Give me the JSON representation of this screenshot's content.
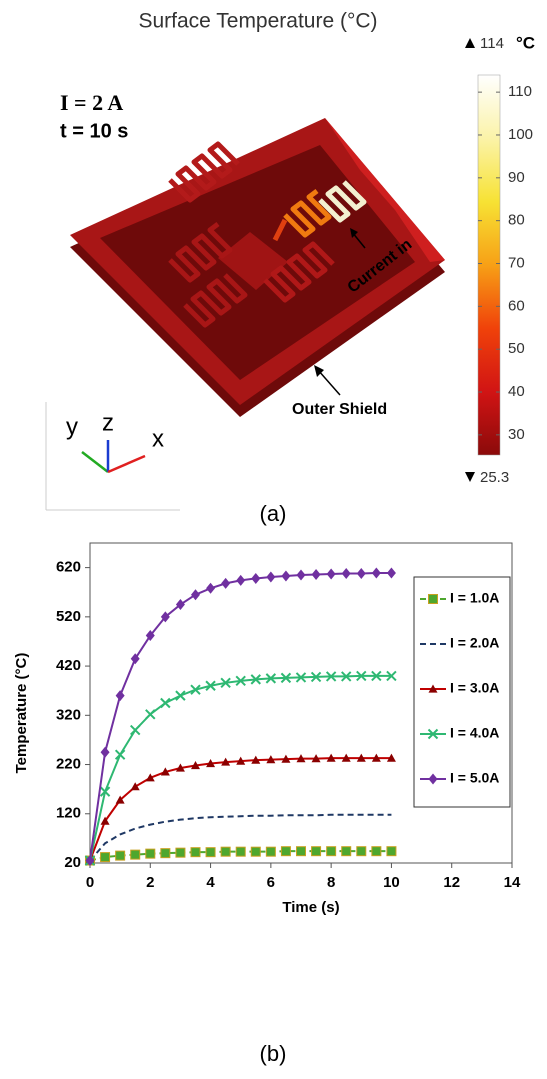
{
  "chart_data": [
    {
      "type": "colormap",
      "title": "Surface Temperature (°C)",
      "annotations": [
        "I = 2 A",
        "t = 10 s",
        "Current in",
        "Outer Shield"
      ],
      "axis_labels": [
        "y",
        "z",
        "x"
      ],
      "panel_label": "(a)",
      "colorbar": {
        "lim": [
          25.3,
          114
        ],
        "ticks": [
          30,
          40,
          50,
          60,
          70,
          80,
          90,
          100,
          110
        ],
        "unit": "°C",
        "colors": [
          "#8b0a0a",
          "#d11414",
          "#f0420a",
          "#f7a016",
          "#f7e234",
          "#fbf3a8",
          "#ffffff"
        ]
      }
    },
    {
      "type": "line",
      "panel_label": "(b)",
      "xlabel": "Time (s)",
      "ylabel": "Temperature (°C)",
      "x": [
        0,
        0.5,
        1,
        1.5,
        2,
        2.5,
        3,
        3.5,
        4,
        4.5,
        5,
        5.5,
        6,
        6.5,
        7,
        7.5,
        8,
        8.5,
        9,
        9.5,
        10
      ],
      "xlim": [
        0,
        14
      ],
      "xticks": [
        0,
        2,
        4,
        6,
        8,
        10,
        12,
        14
      ],
      "ylim": [
        20,
        670
      ],
      "yticks": [
        20,
        120,
        220,
        320,
        420,
        520,
        620
      ],
      "legend": "right",
      "series": [
        {
          "name": "I = 1.0A",
          "color": "#4ea72e",
          "marker": "square",
          "dash": true,
          "values": [
            25,
            32,
            35,
            37,
            39,
            40,
            41,
            42,
            42,
            43,
            43,
            43,
            43,
            44,
            44,
            44,
            44,
            44,
            44,
            44,
            44
          ]
        },
        {
          "name": "I = 2.0A",
          "color": "#1f3864",
          "marker": "none",
          "dash": true,
          "values": [
            25,
            60,
            78,
            90,
            98,
            104,
            108,
            111,
            113,
            114,
            115,
            116,
            116,
            117,
            117,
            117,
            118,
            118,
            118,
            118,
            118
          ]
        },
        {
          "name": "I = 3.0A",
          "color": "#c00000",
          "marker": "triangle",
          "dash": false,
          "values": [
            25,
            105,
            148,
            175,
            193,
            205,
            213,
            218,
            222,
            225,
            227,
            229,
            230,
            231,
            232,
            232,
            233,
            233,
            233,
            233,
            233
          ]
        },
        {
          "name": "I = 4.0A",
          "color": "#2eb872",
          "marker": "cross",
          "dash": false,
          "values": [
            25,
            165,
            240,
            290,
            322,
            345,
            360,
            372,
            380,
            386,
            390,
            393,
            395,
            396,
            397,
            398,
            399,
            399,
            400,
            400,
            400
          ]
        },
        {
          "name": "I = 5.0A",
          "color": "#7030a0",
          "marker": "diamond",
          "dash": false,
          "values": [
            25,
            245,
            360,
            435,
            482,
            520,
            545,
            565,
            578,
            588,
            594,
            598,
            601,
            603,
            605,
            606,
            607,
            608,
            608,
            609,
            609
          ]
        }
      ]
    }
  ]
}
